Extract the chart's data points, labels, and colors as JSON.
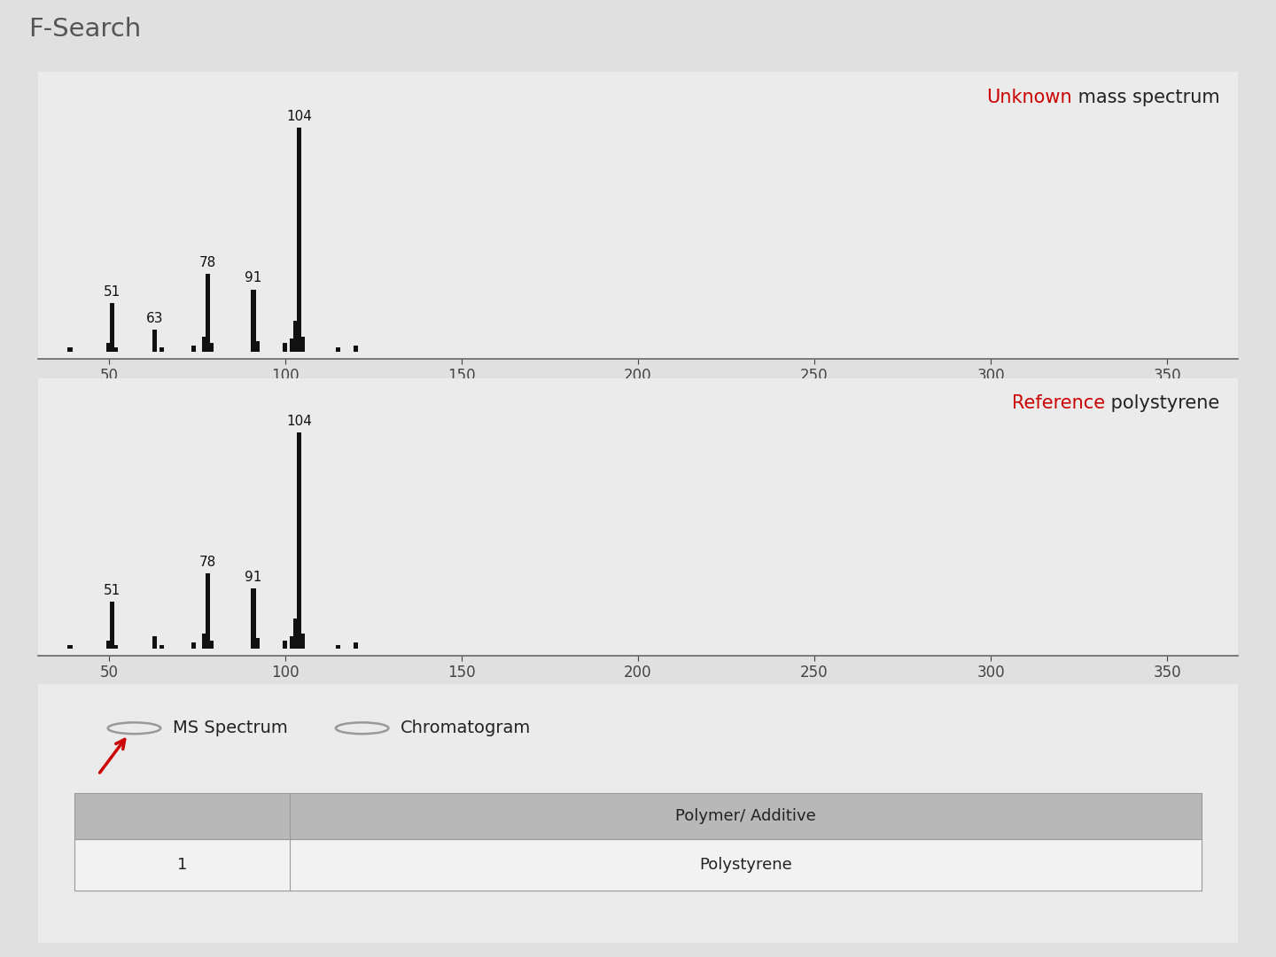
{
  "title": "F-Search",
  "title_color": "#555555",
  "title_bg": "#d0d0d0",
  "background_color": "#e0e0e0",
  "panel_bg": "#ebebeb",
  "unknown_label_red": "Unknown",
  "unknown_label_black": " mass spectrum",
  "reference_label_red": "Reference",
  "reference_label_black": " polystyrene",
  "label_red_color": "#cc0000",
  "label_black_color": "#222222",
  "spectrum1": {
    "masses": [
      39,
      50,
      51,
      52,
      63,
      65,
      74,
      77,
      78,
      79,
      91,
      92,
      100,
      102,
      103,
      104,
      105,
      115,
      120
    ],
    "heights": [
      2,
      4,
      22,
      2,
      10,
      2,
      3,
      7,
      35,
      4,
      28,
      5,
      4,
      6,
      14,
      100,
      7,
      2,
      3
    ]
  },
  "spectrum2": {
    "masses": [
      39,
      50,
      51,
      52,
      63,
      65,
      74,
      77,
      78,
      79,
      91,
      92,
      100,
      102,
      103,
      104,
      105,
      115,
      120
    ],
    "heights": [
      2,
      4,
      22,
      2,
      6,
      2,
      3,
      7,
      35,
      4,
      28,
      5,
      4,
      6,
      14,
      100,
      7,
      2,
      3
    ]
  },
  "labeled_peaks1": {
    "51": 22,
    "63": 10,
    "78": 35,
    "91": 28,
    "104": 100
  },
  "labeled_peaks2": {
    "51": 22,
    "78": 35,
    "91": 28,
    "104": 100
  },
  "xmin": 30,
  "xmax": 370,
  "xticks": [
    50,
    100,
    150,
    200,
    250,
    300,
    350
  ],
  "bar_color": "#111111",
  "ms_spectrum_label": "MS Spectrum",
  "chromatogram_label": "Chromatogram",
  "table_header": "Polymer/ Additive",
  "table_row1_num": "1",
  "table_row1_val": "Polystyrene"
}
